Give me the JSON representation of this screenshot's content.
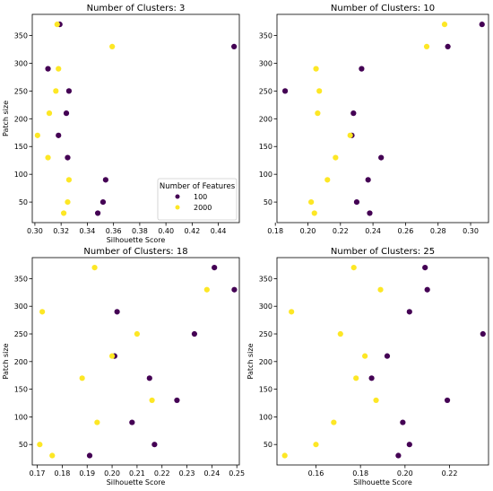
{
  "figure": {
    "colors": {
      "100": "#440154",
      "2000": "#fde725"
    },
    "legend": {
      "title": "Number of Features",
      "entries": [
        "100",
        "2000"
      ],
      "location": "lower-right"
    }
  },
  "chart_data": [
    {
      "type": "scatter",
      "title": "Number of Clusters: 3",
      "xlabel": "Silhouette Score",
      "ylabel": "Patch size",
      "xlim": [
        0.298,
        0.456
      ],
      "ylim": [
        13,
        388
      ],
      "xticks": [
        "0.30",
        "0.32",
        "0.34",
        "0.36",
        "0.38",
        "0.40",
        "0.42",
        "0.44"
      ],
      "yticks": [
        "50",
        "100",
        "150",
        "200",
        "250",
        "300",
        "350"
      ],
      "has_legend": true,
      "series": [
        {
          "name": "100",
          "points": [
            [
              0.319,
              370
            ],
            [
              0.452,
              330
            ],
            [
              0.31,
              290
            ],
            [
              0.326,
              250
            ],
            [
              0.324,
              210
            ],
            [
              0.318,
              170
            ],
            [
              0.325,
              130
            ],
            [
              0.354,
              90
            ],
            [
              0.352,
              50
            ],
            [
              0.348,
              30
            ]
          ]
        },
        {
          "name": "2000",
          "points": [
            [
              0.317,
              370
            ],
            [
              0.359,
              330
            ],
            [
              0.318,
              290
            ],
            [
              0.316,
              250
            ],
            [
              0.311,
              210
            ],
            [
              0.302,
              170
            ],
            [
              0.31,
              130
            ],
            [
              0.326,
              90
            ],
            [
              0.325,
              50
            ],
            [
              0.322,
              30
            ]
          ]
        }
      ]
    },
    {
      "type": "scatter",
      "title": "Number of Clusters: 10",
      "xlabel": "",
      "ylabel": "",
      "xlim": [
        0.181,
        0.311
      ],
      "ylim": [
        13,
        388
      ],
      "xticks": [
        "0.18",
        "0.20",
        "0.22",
        "0.24",
        "0.26",
        "0.28",
        "0.30"
      ],
      "yticks": [
        "50",
        "100",
        "150",
        "200",
        "250",
        "300",
        "350"
      ],
      "has_legend": false,
      "series": [
        {
          "name": "100",
          "points": [
            [
              0.307,
              370
            ],
            [
              0.286,
              330
            ],
            [
              0.233,
              290
            ],
            [
              0.186,
              250
            ],
            [
              0.228,
              210
            ],
            [
              0.227,
              170
            ],
            [
              0.245,
              130
            ],
            [
              0.237,
              90
            ],
            [
              0.23,
              50
            ],
            [
              0.238,
              30
            ]
          ]
        },
        {
          "name": "2000",
          "points": [
            [
              0.284,
              370
            ],
            [
              0.273,
              330
            ],
            [
              0.205,
              290
            ],
            [
              0.207,
              250
            ],
            [
              0.206,
              210
            ],
            [
              0.226,
              170
            ],
            [
              0.217,
              130
            ],
            [
              0.212,
              90
            ],
            [
              0.202,
              50
            ],
            [
              0.204,
              30
            ]
          ]
        }
      ]
    },
    {
      "type": "scatter",
      "title": "Number of Clusters: 18",
      "xlabel": "Silhouette Score",
      "ylabel": "Patch size",
      "xlim": [
        0.168,
        0.251
      ],
      "ylim": [
        13,
        388
      ],
      "xticks": [
        "0.17",
        "0.18",
        "0.19",
        "0.20",
        "0.21",
        "0.22",
        "0.23",
        "0.24",
        "0.25"
      ],
      "yticks": [
        "50",
        "100",
        "150",
        "200",
        "250",
        "300",
        "350"
      ],
      "has_legend": false,
      "series": [
        {
          "name": "100",
          "points": [
            [
              0.241,
              370
            ],
            [
              0.249,
              330
            ],
            [
              0.202,
              290
            ],
            [
              0.233,
              250
            ],
            [
              0.201,
              210
            ],
            [
              0.215,
              170
            ],
            [
              0.226,
              130
            ],
            [
              0.208,
              90
            ],
            [
              0.217,
              50
            ],
            [
              0.191,
              30
            ]
          ]
        },
        {
          "name": "2000",
          "points": [
            [
              0.193,
              370
            ],
            [
              0.238,
              330
            ],
            [
              0.172,
              290
            ],
            [
              0.21,
              250
            ],
            [
              0.2,
              210
            ],
            [
              0.188,
              170
            ],
            [
              0.216,
              130
            ],
            [
              0.194,
              90
            ],
            [
              0.171,
              50
            ],
            [
              0.176,
              30
            ]
          ]
        }
      ]
    },
    {
      "type": "scatter",
      "title": "Number of Clusters: 25",
      "xlabel": "Silhouette Score",
      "ylabel": "Patch size",
      "xlim": [
        0.1425,
        0.2375
      ],
      "ylim": [
        13,
        388
      ],
      "xticks": [
        "0.16",
        "0.18",
        "0.20",
        "0.22"
      ],
      "yticks": [
        "50",
        "100",
        "150",
        "200",
        "250",
        "300",
        "350"
      ],
      "has_legend": false,
      "series": [
        {
          "name": "100",
          "points": [
            [
              0.209,
              370
            ],
            [
              0.21,
              330
            ],
            [
              0.202,
              290
            ],
            [
              0.235,
              250
            ],
            [
              0.192,
              210
            ],
            [
              0.185,
              170
            ],
            [
              0.219,
              130
            ],
            [
              0.199,
              90
            ],
            [
              0.202,
              50
            ],
            [
              0.197,
              30
            ]
          ]
        },
        {
          "name": "2000",
          "points": [
            [
              0.177,
              370
            ],
            [
              0.189,
              330
            ],
            [
              0.149,
              290
            ],
            [
              0.171,
              250
            ],
            [
              0.182,
              210
            ],
            [
              0.178,
              170
            ],
            [
              0.187,
              130
            ],
            [
              0.168,
              90
            ],
            [
              0.16,
              50
            ],
            [
              0.146,
              30
            ]
          ]
        }
      ]
    }
  ]
}
